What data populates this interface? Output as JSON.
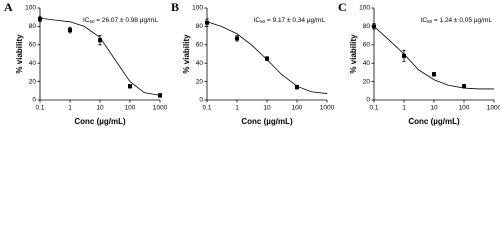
{
  "chart_data": [
    {
      "type": "scatter",
      "panel_label": "A",
      "annotation": [
        "IC",
        "50",
        " = 26.07 ± 0.98 µg/mL"
      ],
      "x": [
        0.1,
        1,
        10,
        100,
        1000
      ],
      "values": [
        88,
        76,
        65,
        15,
        5
      ],
      "errors": [
        3,
        3,
        5,
        2,
        2
      ],
      "fit_x": [
        0.1,
        0.3,
        1,
        3,
        10,
        30,
        100,
        300,
        1000
      ],
      "fit_y": [
        89,
        87,
        85,
        80,
        68,
        45,
        20,
        8,
        5
      ],
      "xlim": [
        0.1,
        1000
      ],
      "ylim": [
        0,
        100
      ],
      "xticks": [
        0.1,
        1,
        10,
        100,
        1000
      ],
      "yticks": [
        0,
        20,
        40,
        60,
        80,
        100
      ],
      "log_x": true,
      "xlabel": "Conc (µg/mL)",
      "ylabel": "% viability",
      "color": "#000000"
    },
    {
      "type": "scatter",
      "panel_label": "B",
      "annotation": [
        "IC",
        "50",
        " = 9.17 ± 0.34 µg/mL"
      ],
      "x": [
        0.1,
        1,
        10,
        100
      ],
      "values": [
        84,
        67,
        45,
        14
      ],
      "errors": [
        4,
        3,
        2,
        2
      ],
      "fit_x": [
        0.1,
        0.3,
        1,
        3,
        10,
        30,
        100,
        300,
        1000
      ],
      "fit_y": [
        85,
        80,
        72,
        60,
        44,
        28,
        15,
        9,
        7
      ],
      "xlim": [
        0.1,
        1000
      ],
      "ylim": [
        0,
        100
      ],
      "xticks": [
        0.1,
        1,
        10,
        100,
        1000
      ],
      "yticks": [
        0,
        20,
        40,
        60,
        80,
        100
      ],
      "log_x": true,
      "xlabel": "Conc (µg/mL)",
      "ylabel": "% viability",
      "color": "#000000"
    },
    {
      "type": "scatter",
      "panel_label": "C",
      "annotation": [
        "IC",
        "50",
        " = 1.24 ± 0.05 µg/mL"
      ],
      "x": [
        0.1,
        1,
        10,
        100
      ],
      "values": [
        80,
        48,
        28,
        15
      ],
      "errors": [
        3,
        6,
        2,
        2
      ],
      "fit_x": [
        0.1,
        0.3,
        1,
        3,
        10,
        30,
        100,
        300,
        1000
      ],
      "fit_y": [
        80,
        66,
        50,
        33,
        22,
        16,
        13,
        12,
        12
      ],
      "xlim": [
        0.1,
        1000
      ],
      "ylim": [
        0,
        100
      ],
      "xticks": [
        0.1,
        1,
        10,
        100,
        1000
      ],
      "yticks": [
        0,
        20,
        40,
        60,
        80,
        100
      ],
      "log_x": true,
      "xlabel": "Conc (µg/mL)",
      "ylabel": "% viability",
      "color": "#000000"
    }
  ]
}
